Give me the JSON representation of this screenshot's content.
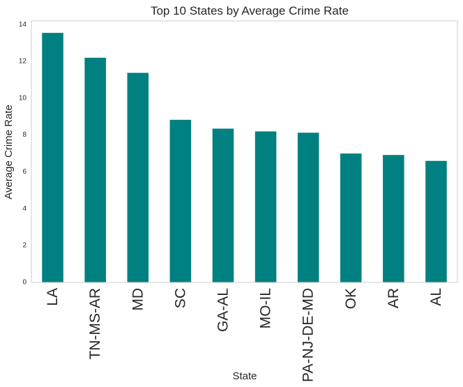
{
  "chart_data": {
    "type": "bar",
    "title": "Top 10 States by Average Crime Rate",
    "xlabel": "State",
    "ylabel": "Average Crime Rate",
    "categories": [
      "LA",
      "TN-MS-AR",
      "MD",
      "SC",
      "GA-AL",
      "MO-IL",
      "PA-NJ-DE-MD",
      "OK",
      "AR",
      "AL"
    ],
    "values": [
      13.55,
      12.2,
      11.38,
      8.83,
      8.35,
      8.2,
      8.13,
      7.0,
      6.92,
      6.6
    ],
    "ylim": [
      0,
      14.2
    ],
    "yticks": [
      0,
      2,
      4,
      6,
      8,
      10,
      12,
      14
    ],
    "grid": false,
    "legend": false,
    "bar_color": "#008080",
    "axis_color": "#cccccc"
  }
}
